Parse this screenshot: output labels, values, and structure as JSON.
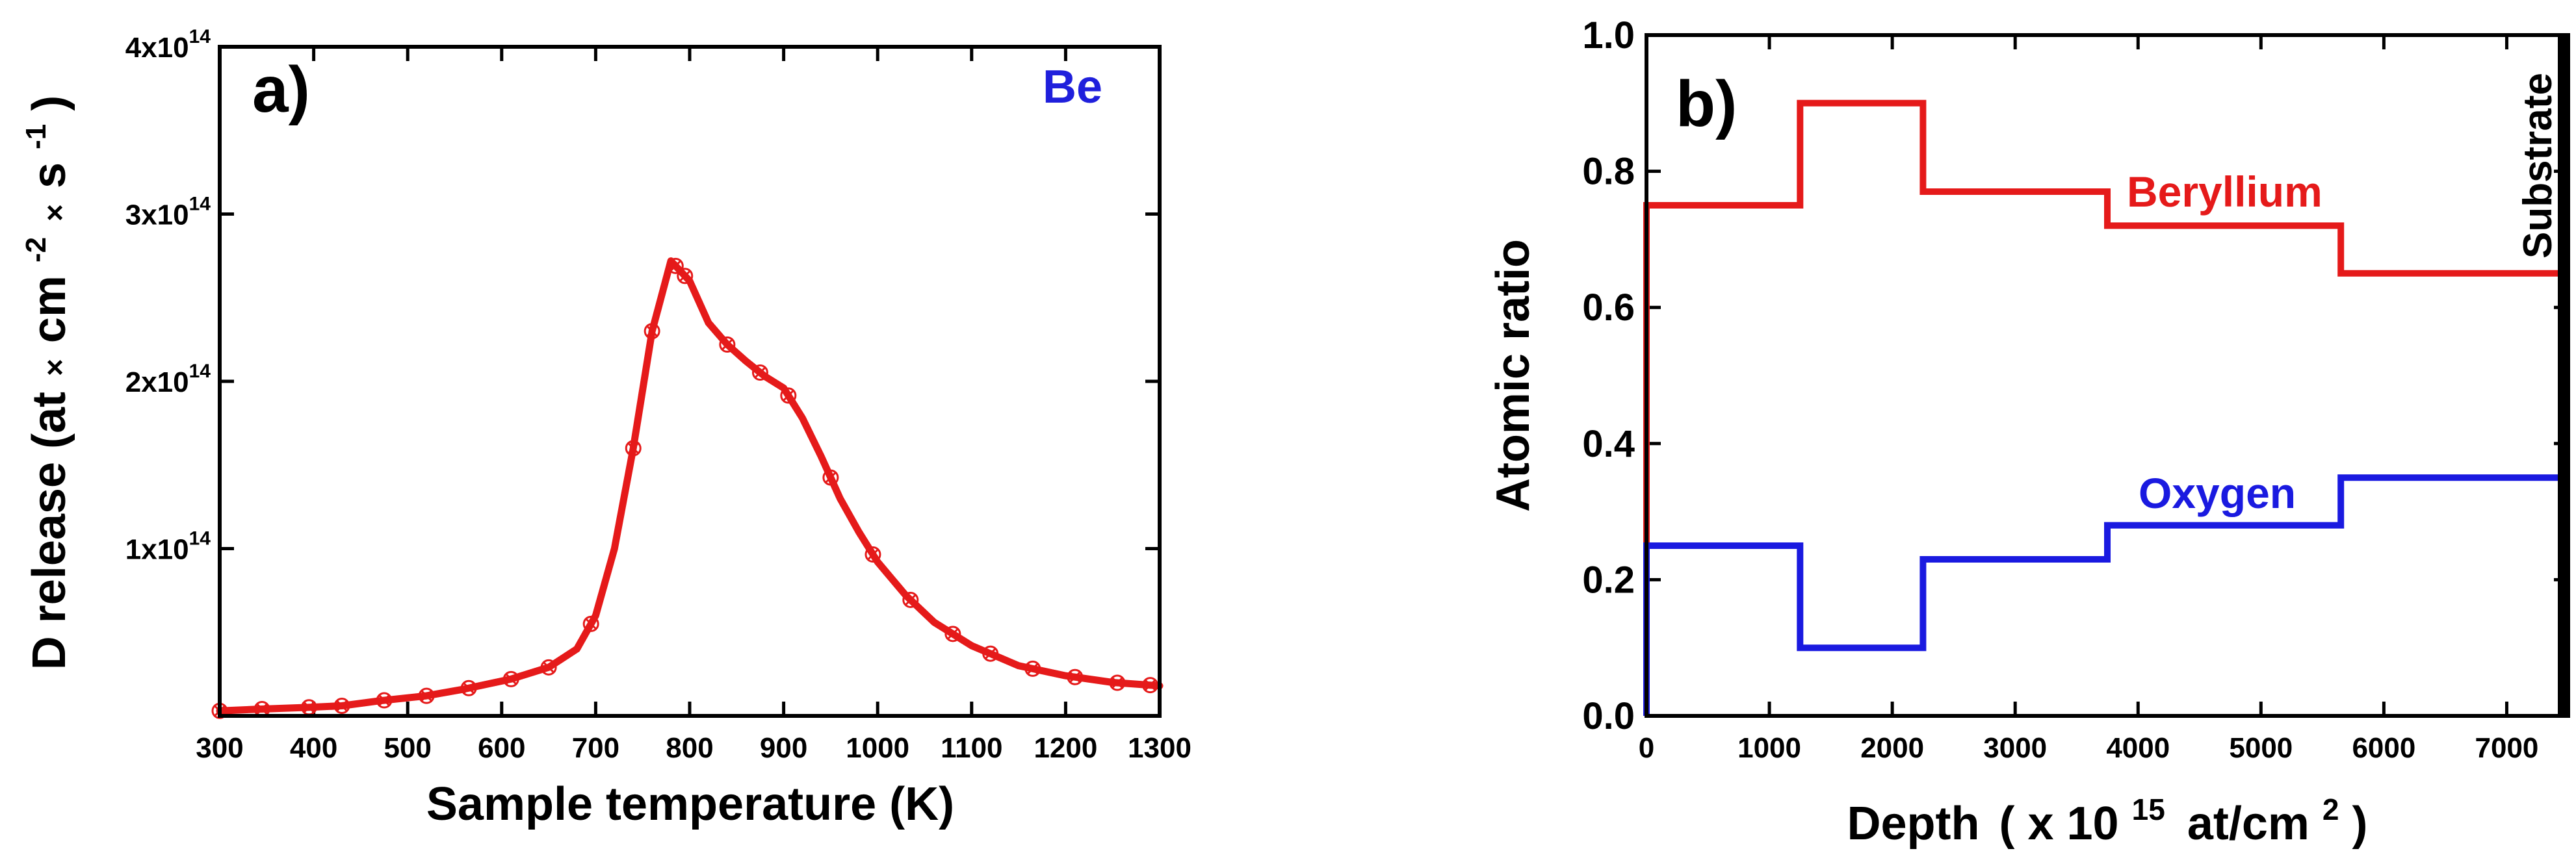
{
  "chart_data": [
    {
      "type": "line",
      "panel_label": "a)",
      "annotation": "Be",
      "annotation_color": "#1f1fdc",
      "xlabel": "Sample temperature (K)",
      "ylabel": {
        "prefix": "D release (at",
        "mult": "×",
        "cm": "cm",
        "cm_exp": "-2",
        "s": "s",
        "s_exp": "-1",
        "suffix": ")"
      },
      "xlim": [
        300,
        1300
      ],
      "ylim": [
        0,
        400000000000000.0
      ],
      "xticks": [
        300,
        400,
        500,
        600,
        700,
        800,
        900,
        1000,
        1100,
        1200,
        1300
      ],
      "xtick_labels": [
        "300",
        "400",
        "500",
        "600",
        "700",
        "800",
        "900",
        "1000",
        "1100",
        "1200",
        "1300"
      ],
      "yticks": [
        {
          "value": 100000000000000.0,
          "base": "1x10",
          "exp": "14"
        },
        {
          "value": 200000000000000.0,
          "base": "2x10",
          "exp": "14"
        },
        {
          "value": 300000000000000.0,
          "base": "3x10",
          "exp": "14"
        },
        {
          "value": 400000000000000.0,
          "base": "4x10",
          "exp": "14"
        }
      ],
      "series": [
        {
          "name": "Be",
          "color": "#e51a1a",
          "x": [
            300,
            340,
            390,
            430,
            470,
            520,
            560,
            610,
            650,
            680,
            700,
            720,
            740,
            760,
            780,
            800,
            820,
            840,
            860,
            880,
            900,
            920,
            940,
            960,
            980,
            1000,
            1030,
            1060,
            1100,
            1150,
            1200,
            1250,
            1300
          ],
          "y": [
            3000000000000.0,
            4000000000000.0,
            5000000000000.0,
            6000000000000.0,
            9000000000000.0,
            12000000000000.0,
            16000000000000.0,
            22000000000000.0,
            29000000000000.0,
            40000000000000.0,
            60000000000000.0,
            100000000000000.0,
            160000000000000.0,
            230000000000000.0,
            272000000000000.0,
            260000000000000.0,
            235000000000000.0,
            222000000000000.0,
            212000000000000.0,
            203000000000000.0,
            196000000000000.0,
            178000000000000.0,
            155000000000000.0,
            130000000000000.0,
            110000000000000.0,
            92000000000000.0,
            72000000000000.0,
            56000000000000.0,
            42000000000000.0,
            30000000000000.0,
            24000000000000.0,
            20000000000000.0,
            18000000000000.0
          ],
          "markers_x": [
            300,
            345,
            395,
            430,
            475,
            520,
            565,
            610,
            650,
            695,
            740,
            760,
            785,
            795,
            840,
            875,
            905,
            950,
            995,
            1035,
            1080,
            1120,
            1165,
            1210,
            1255,
            1290
          ]
        }
      ]
    },
    {
      "type": "line",
      "panel_label": "b)",
      "xlabel": {
        "prefix": "Depth",
        "paren": "( x 10",
        "exp": "15",
        "unit": "at/cm",
        "unit_exp": "2",
        "close": ")"
      },
      "ylabel": "Atomic ratio",
      "xlim": [
        0,
        7500
      ],
      "ylim": [
        0,
        1.0
      ],
      "xticks": [
        0,
        1000,
        2000,
        3000,
        4000,
        5000,
        6000,
        7000
      ],
      "xtick_labels": [
        "0",
        "1000",
        "2000",
        "3000",
        "4000",
        "5000",
        "6000",
        "7000"
      ],
      "yticks": [
        0.0,
        0.2,
        0.4,
        0.6,
        0.8,
        1.0
      ],
      "ytick_labels": [
        "0.0",
        "0.2",
        "0.4",
        "0.6",
        "0.8",
        "1.0"
      ],
      "substrate_label": "Substrate",
      "substrate_x": 7500,
      "series": [
        {
          "name": "Beryllium",
          "color": "#e51a1a",
          "edges": [
            0,
            1250,
            2250,
            3750,
            5650,
            7450
          ],
          "values": [
            0.75,
            0.9,
            0.77,
            0.72,
            0.65
          ]
        },
        {
          "name": "Oxygen",
          "color": "#1a1ae0",
          "edges": [
            0,
            1250,
            2250,
            3750,
            5650,
            7450
          ],
          "values": [
            0.25,
            0.1,
            0.23,
            0.28,
            0.35
          ]
        }
      ]
    }
  ]
}
